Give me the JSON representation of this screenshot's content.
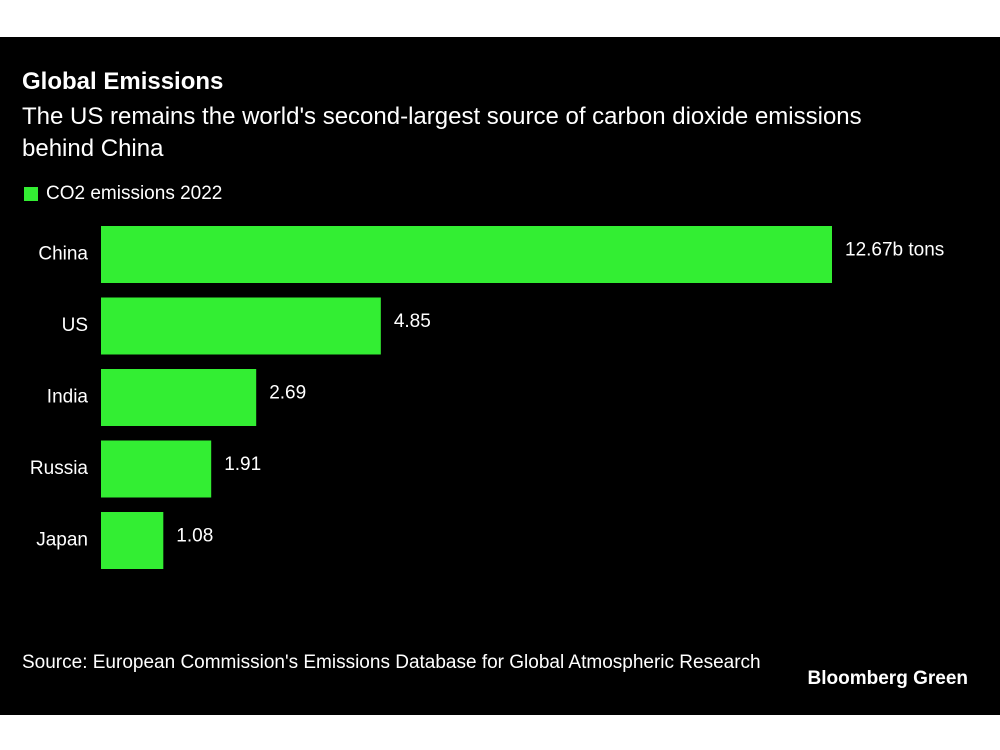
{
  "title": "Global Emissions",
  "subtitle": "The US remains the world's second-largest source of carbon dioxide emissions behind China",
  "legend": {
    "label": "CO2 emissions 2022",
    "color": "#33ee33"
  },
  "source": "Source: European Commission's Emissions Database for Global Atmospheric Research",
  "brand": "Bloomberg Green",
  "chart_data": {
    "type": "bar",
    "orientation": "horizontal",
    "categories": [
      "China",
      "US",
      "India",
      "Russia",
      "Japan"
    ],
    "series": [
      {
        "name": "CO2 emissions 2022",
        "values": [
          12.67,
          4.85,
          2.69,
          1.91,
          1.08
        ],
        "color": "#33ee33"
      }
    ],
    "value_labels": [
      "12.67b tons",
      "4.85",
      "2.69",
      "1.91",
      "1.08"
    ],
    "grid": false,
    "legend_position": "top-left",
    "background": "#000000"
  }
}
